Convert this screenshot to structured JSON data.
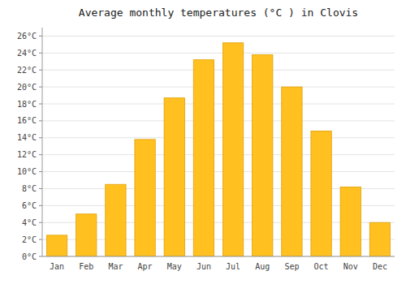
{
  "chart_data": {
    "type": "bar",
    "title": "Average monthly temperatures (°C ) in Clovis",
    "categories": [
      "Jan",
      "Feb",
      "Mar",
      "Apr",
      "May",
      "Jun",
      "Jul",
      "Aug",
      "Sep",
      "Oct",
      "Nov",
      "Dec"
    ],
    "values": [
      2.5,
      5.0,
      8.5,
      13.8,
      18.7,
      23.2,
      25.2,
      23.8,
      20.0,
      14.8,
      8.2,
      4.0
    ],
    "color": "#FFC020",
    "ylim": [
      0,
      27
    ],
    "yticks": [
      {
        "value": 0,
        "label": "0°C"
      },
      {
        "value": 2,
        "label": "2°C"
      },
      {
        "value": 4,
        "label": "4°C"
      },
      {
        "value": 6,
        "label": "6°C"
      },
      {
        "value": 8,
        "label": "8°C"
      },
      {
        "value": 10,
        "label": "10°C"
      },
      {
        "value": 12,
        "label": "12°C"
      },
      {
        "value": 14,
        "label": "14°C"
      },
      {
        "value": 16,
        "label": "16°C"
      },
      {
        "value": 18,
        "label": "18°C"
      },
      {
        "value": 20,
        "label": "20°C"
      },
      {
        "value": 22,
        "label": "22°C"
      },
      {
        "value": 24,
        "label": "24°C"
      },
      {
        "value": 26,
        "label": "26°C"
      }
    ],
    "grid": true
  }
}
